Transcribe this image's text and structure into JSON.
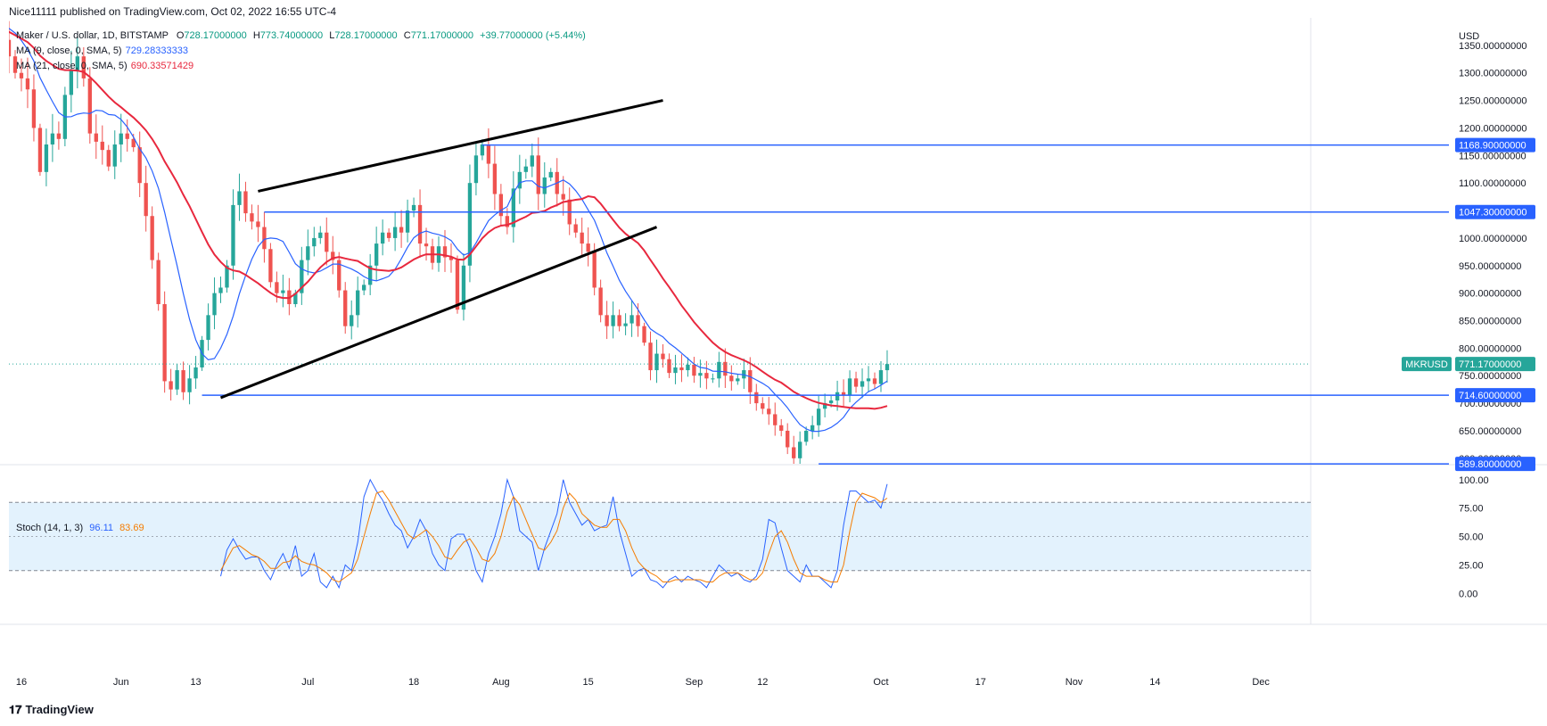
{
  "header": {
    "text": "Nice11111 published on TradingView.com, Oct 02, 2022 16:55 UTC-4"
  },
  "legend": {
    "symbol": "Maker / U.S. dollar, 1D, BITSTAMP",
    "ohlc": {
      "o_label": "O",
      "o": "728.17000000",
      "h_label": "H",
      "h": "773.74000000",
      "l_label": "L",
      "l": "728.17000000",
      "c_label": "C",
      "c": "771.17000000",
      "change": "+39.77000000 (+5.44%)"
    },
    "ma9": {
      "label": "MA (9, close, 0, SMA, 5)",
      "value": "729.28333333",
      "color": "#2962ff"
    },
    "ma21": {
      "label": "MA (21, close, 0, SMA, 5)",
      "value": "690.33571429",
      "color": "#e8283e"
    }
  },
  "stoch_legend": {
    "label": "Stoch (14, 1, 3)",
    "k": "96.11",
    "d": "83.69",
    "k_color": "#2962ff",
    "d_color": "#f57c00"
  },
  "footer": {
    "brand": "TradingView",
    "logo_icon": "tradingview-logo-icon"
  },
  "colors": {
    "up": "#26a69a",
    "down": "#ef5350",
    "level": "#2962ff",
    "trend": "#000000",
    "band": "#e3f2fd"
  },
  "chart_data": [
    {
      "type": "candlestick",
      "title": "",
      "currency": "USD",
      "y_ticks": [
        "600.00000000",
        "650.00000000",
        "700.00000000",
        "750.00000000",
        "800.00000000",
        "850.00000000",
        "900.00000000",
        "950.00000000",
        "1000.00000000",
        "1050.00000000",
        "1100.00000000",
        "1150.00000000",
        "1200.00000000",
        "1250.00000000",
        "1300.00000000",
        "1350.00000000"
      ],
      "ylim": [
        590,
        1400
      ],
      "x_ticks": [
        "16",
        "Jun",
        "13",
        "Jul",
        "18",
        "Aug",
        "15",
        "Sep",
        "12",
        "Oct",
        "17",
        "Nov",
        "14",
        "Dec"
      ],
      "x_tick_dates": [
        "2022-05-16",
        "2022-06-01",
        "2022-06-13",
        "2022-07-01",
        "2022-07-18",
        "2022-08-01",
        "2022-08-15",
        "2022-09-01",
        "2022-09-12",
        "2022-10-01",
        "2022-10-17",
        "2022-11-01",
        "2022-11-14",
        "2022-12-01"
      ],
      "x_range": [
        "2022-05-14",
        "2022-12-09"
      ],
      "last_date": "2022-10-02",
      "horizontal_levels": [
        {
          "value": 1168.9,
          "label": "1168.90000000",
          "start": "2022-07-29"
        },
        {
          "value": 1047.3,
          "label": "1047.30000000",
          "start": "2022-06-24"
        },
        {
          "value": 714.6,
          "label": "714.60000000",
          "start": "2022-06-14"
        },
        {
          "value": 589.8,
          "label": "589.80000000",
          "start": "2022-09-21"
        }
      ],
      "current_price": {
        "symbol": "MKRUSD",
        "label": "771.17000000",
        "value": 771.17
      },
      "trend_lines": [
        {
          "from": [
            "2022-06-17",
            710
          ],
          "to": [
            "2022-08-26",
            1020
          ]
        },
        {
          "from": [
            "2022-06-23",
            1085
          ],
          "to": [
            "2022-08-27",
            1250
          ]
        }
      ],
      "closes": [
        1350,
        1340,
        1380,
        1410,
        1420,
        1385,
        1395,
        1370,
        1380,
        1360,
        1330,
        1300,
        1290,
        1270,
        1200,
        1120,
        1170,
        1190,
        1180,
        1260,
        1305,
        1330,
        1290,
        1190,
        1175,
        1160,
        1130,
        1170,
        1190,
        1180,
        1165,
        1100,
        1040,
        960,
        880,
        740,
        725,
        760,
        720,
        745,
        765,
        815,
        860,
        900,
        910,
        950,
        1060,
        1085,
        1045,
        1030,
        1020,
        980,
        920,
        900,
        905,
        880,
        900,
        960,
        985,
        1000,
        1010,
        975,
        960,
        905,
        840,
        860,
        905,
        915,
        950,
        990,
        1010,
        1000,
        1020,
        1010,
        1050,
        1060,
        990,
        985,
        955,
        985,
        965,
        960,
        870,
        950,
        1100,
        1150,
        1170,
        1135,
        1080,
        1040,
        1020,
        1090,
        1120,
        1130,
        1150,
        1080,
        1110,
        1120,
        1080,
        1070,
        1025,
        1010,
        990,
        975,
        910,
        860,
        840,
        860,
        840,
        845,
        860,
        840,
        810,
        760,
        790,
        780,
        755,
        765,
        760,
        770,
        750,
        755,
        745,
        745,
        775,
        750,
        740,
        745,
        760,
        720,
        700,
        690,
        680,
        660,
        650,
        620,
        600,
        630,
        650,
        660,
        690,
        700,
        705,
        720,
        715,
        745,
        730,
        740,
        745,
        735,
        760,
        771.17
      ]
    },
    {
      "type": "line",
      "title": "",
      "ylim": [
        -10,
        110
      ],
      "y_ticks": [
        "0.00",
        "25.00",
        "50.00",
        "75.00",
        "100.00"
      ],
      "levels": [
        20,
        50,
        80
      ],
      "series": [
        {
          "name": "",
          "values": [
            15,
            38,
            48,
            38,
            30,
            32,
            32,
            20,
            12,
            25,
            35,
            22,
            42,
            15,
            20,
            35,
            10,
            5,
            15,
            5,
            25,
            20,
            45,
            85,
            100,
            90,
            82,
            70,
            60,
            55,
            40,
            50,
            65,
            55,
            35,
            25,
            20,
            48,
            52,
            52,
            40,
            20,
            10,
            35,
            50,
            70,
            100,
            85,
            55,
            50,
            45,
            20,
            40,
            55,
            70,
            100,
            80,
            70,
            60,
            65,
            55,
            58,
            60,
            85,
            55,
            35,
            15,
            20,
            22,
            12,
            10,
            5,
            12,
            15,
            10,
            15,
            12,
            10,
            5,
            15,
            25,
            20,
            15,
            18,
            12,
            10,
            15,
            30,
            65,
            62,
            40,
            20,
            15,
            10,
            25,
            15,
            15,
            10,
            5,
            20,
            60,
            90,
            90,
            85,
            80,
            82,
            75,
            96.11
          ]
        },
        {
          "name": "",
          "values": [
            20,
            30,
            40,
            42,
            38,
            34,
            32,
            28,
            22,
            22,
            27,
            28,
            33,
            28,
            26,
            25,
            22,
            18,
            12,
            10,
            14,
            18,
            30,
            50,
            70,
            88,
            90,
            82,
            72,
            62,
            52,
            48,
            52,
            56,
            50,
            42,
            32,
            30,
            38,
            45,
            48,
            40,
            30,
            28,
            35,
            50,
            72,
            85,
            78,
            65,
            52,
            40,
            38,
            45,
            55,
            75,
            88,
            82,
            70,
            65,
            60,
            58,
            58,
            65,
            65,
            55,
            40,
            28,
            22,
            18,
            15,
            10,
            10,
            12,
            12,
            12,
            12,
            12,
            10,
            10,
            15,
            18,
            18,
            18,
            15,
            12,
            12,
            18,
            35,
            50,
            55,
            45,
            30,
            18,
            15,
            15,
            15,
            12,
            10,
            10,
            25,
            55,
            80,
            88,
            86,
            84,
            80,
            83.69
          ]
        }
      ]
    }
  ]
}
